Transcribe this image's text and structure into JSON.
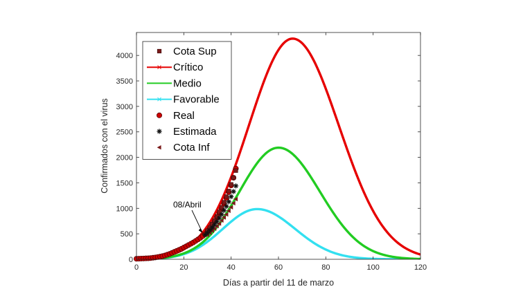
{
  "chart_data": {
    "type": "line",
    "xlabel": "Días a partir del 11 de marzo",
    "ylabel": "Confirmados con el virus",
    "xlim": [
      0,
      120
    ],
    "ylim": [
      0,
      4450
    ],
    "xticks": [
      0,
      20,
      40,
      60,
      80,
      100,
      120
    ],
    "yticks": [
      0,
      500,
      1000,
      1500,
      2000,
      2500,
      3000,
      3500,
      4000
    ],
    "grid": false,
    "legend_position": "top-left",
    "series": [
      {
        "name": "Cota Sup",
        "kind": "marker",
        "marker": "square",
        "color": "#7a1a1a",
        "x": [
          30,
          31,
          32,
          33,
          34,
          35,
          36,
          37,
          38,
          39,
          40,
          41,
          42
        ],
        "y": [
          560,
          620,
          690,
          760,
          840,
          930,
          1020,
          1120,
          1230,
          1340,
          1470,
          1600,
          1740
        ]
      },
      {
        "name": "Crítico",
        "kind": "curve",
        "color": "#e60000",
        "peak_x": 66,
        "peak_y": 4330,
        "sigma_left": 18.5,
        "sigma_right": 19.5
      },
      {
        "name": "Medio",
        "kind": "curve",
        "color": "#22cc22",
        "peak_x": 60,
        "peak_y": 2190,
        "sigma_left": 16.5,
        "sigma_right": 17.5
      },
      {
        "name": "Favorable",
        "kind": "curve",
        "color": "#33e0f0",
        "peak_x": 51,
        "peak_y": 985,
        "sigma_left": 14.5,
        "sigma_right": 16
      },
      {
        "name": "Real",
        "kind": "marker",
        "marker": "circle",
        "color": "#cc0000",
        "x": [
          0,
          1,
          2,
          3,
          4,
          5,
          6,
          7,
          8,
          9,
          10,
          11,
          12,
          13,
          14,
          15,
          16,
          17,
          18,
          19,
          20,
          21,
          22,
          23,
          24,
          25,
          26,
          27,
          28,
          29,
          30,
          31,
          32,
          33,
          34,
          35,
          36,
          37,
          38,
          39,
          40,
          41,
          42
        ],
        "y": [
          10,
          12,
          14,
          16,
          18,
          20,
          24,
          30,
          36,
          44,
          52,
          62,
          75,
          90,
          105,
          125,
          145,
          165,
          185,
          205,
          230,
          255,
          280,
          305,
          330,
          360,
          390,
          420,
          455,
          490,
          540,
          600,
          670,
          740,
          820,
          900,
          990,
          1090,
          1200,
          1320,
          1450,
          1600,
          1780
        ]
      },
      {
        "name": "Estimada",
        "kind": "marker",
        "marker": "star",
        "color": "#111111",
        "x": [
          29,
          30,
          31,
          32,
          33,
          34,
          35,
          36,
          37,
          38,
          39,
          40,
          41,
          42
        ],
        "y": [
          480,
          520,
          570,
          620,
          680,
          740,
          810,
          880,
          960,
          1040,
          1130,
          1230,
          1330,
          1440
        ]
      },
      {
        "name": "Cota Inf",
        "kind": "marker",
        "marker": "triangle-left",
        "color": "#7a1a1a",
        "x": [
          30,
          31,
          32,
          33,
          34,
          35,
          36,
          37,
          38,
          39,
          40,
          41,
          42
        ],
        "y": [
          480,
          520,
          560,
          600,
          650,
          700,
          760,
          820,
          880,
          950,
          1020,
          1100,
          1180
        ]
      }
    ],
    "annotations": [
      {
        "text": "08/Abril",
        "x": 28,
        "y": 500
      }
    ]
  }
}
